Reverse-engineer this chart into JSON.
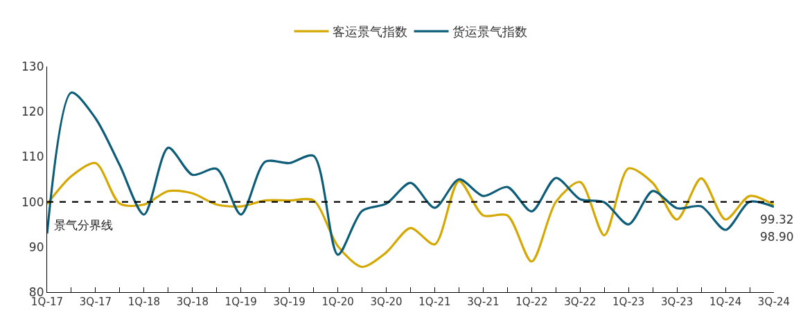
{
  "chart_data": {
    "type": "line",
    "categories": [
      "1Q-17",
      null,
      "3Q-17",
      null,
      "1Q-18",
      null,
      "3Q-18",
      null,
      "1Q-19",
      null,
      "3Q-19",
      null,
      "1Q-20",
      null,
      "3Q-20",
      null,
      "1Q-21",
      null,
      "3Q-21",
      null,
      "1Q-22",
      null,
      "3Q-22",
      null,
      "1Q-23",
      null,
      "3Q-23",
      null,
      "1Q-24",
      null,
      "3Q-24"
    ],
    "series": [
      {
        "name": "客运景气指数",
        "color": "#d4a800",
        "values": [
          99.5,
          105.7,
          108.6,
          99.6,
          99.4,
          102.4,
          101.9,
          99.4,
          99.0,
          100.3,
          100.3,
          100.3,
          90.2,
          85.6,
          88.8,
          94.2,
          90.6,
          104.6,
          97.0,
          97.0,
          86.8,
          100.0,
          104.4,
          92.6,
          107.4,
          104.2,
          96.1,
          105.2,
          96.1,
          101.3,
          99.32
        ],
        "value_labels": [
          null,
          null,
          null,
          null,
          null,
          null,
          null,
          null,
          null,
          null,
          null,
          null,
          null,
          null,
          null,
          null,
          null,
          null,
          null,
          null,
          null,
          null,
          null,
          null,
          null,
          null,
          null,
          null,
          null,
          null,
          "99.32"
        ]
      },
      {
        "name": "货运景气指数",
        "color": "#0d5d78",
        "values": [
          93.0,
          124.2,
          118.5,
          108.1,
          97.2,
          112.0,
          106.0,
          107.3,
          97.2,
          108.9,
          108.6,
          110.2,
          88.3,
          98.0,
          99.6,
          104.2,
          98.7,
          105.0,
          101.3,
          103.3,
          97.9,
          105.3,
          100.6,
          99.9,
          95.0,
          102.4,
          98.6,
          99.0,
          93.8,
          100.0,
          98.9
        ],
        "value_labels": [
          null,
          null,
          null,
          null,
          null,
          null,
          null,
          null,
          null,
          null,
          null,
          null,
          null,
          null,
          null,
          null,
          null,
          null,
          null,
          null,
          null,
          null,
          null,
          null,
          null,
          null,
          null,
          null,
          null,
          null,
          "98.90"
        ]
      }
    ],
    "ylim": [
      80,
      130
    ],
    "yticks": [
      80,
      90,
      100,
      110,
      120,
      130
    ],
    "ref_lines": [
      {
        "axis": "y",
        "value": 100,
        "label": "景气分界线",
        "color": "#000000",
        "line_style": "dashed"
      }
    ],
    "legend": "top"
  }
}
